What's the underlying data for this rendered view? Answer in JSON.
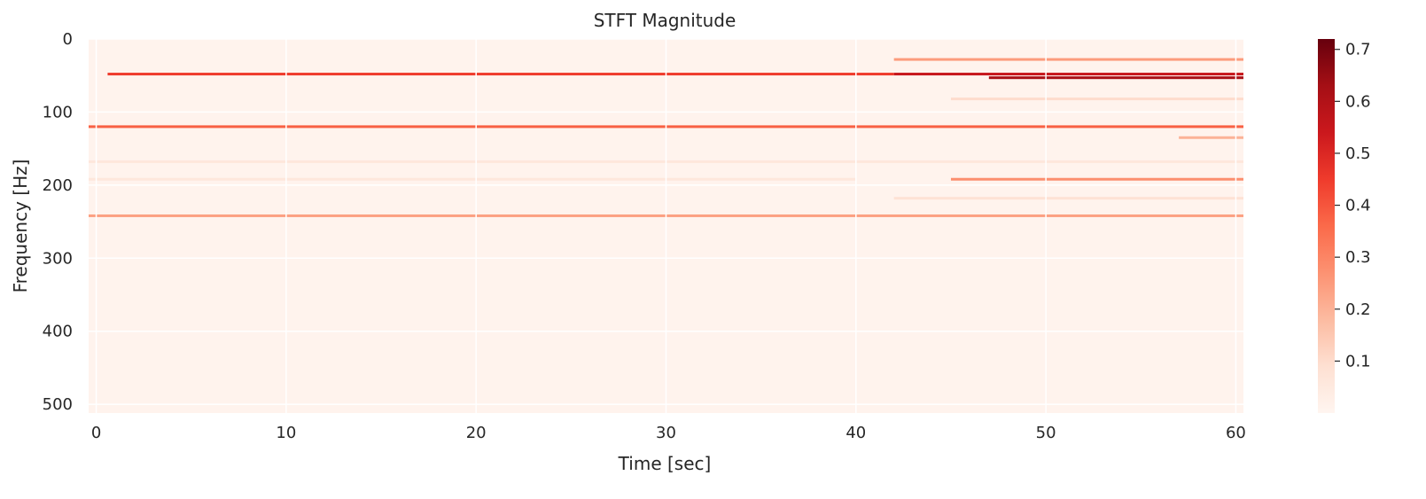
{
  "chart_data": {
    "type": "heatmap",
    "title": "STFT Magnitude",
    "xlabel": "Time [sec]",
    "ylabel": "Frequency [Hz]",
    "xlim": [
      -0.4,
      60.4
    ],
    "ylim": [
      512,
      0
    ],
    "x_ticks": [
      0,
      10,
      20,
      30,
      40,
      50,
      60
    ],
    "y_ticks": [
      0,
      100,
      200,
      300,
      400,
      500
    ],
    "grid": true,
    "colormap": "Reds",
    "colorbar": {
      "range": [
        0.0,
        0.72
      ],
      "ticks": [
        0.1,
        0.2,
        0.3,
        0.4,
        0.5,
        0.6,
        0.7
      ],
      "colors": [
        "#fff5f0",
        "#fee0d2",
        "#fcbba1",
        "#fc9272",
        "#fb6a4a",
        "#ef3b2c",
        "#cb181d",
        "#a50f15",
        "#67000d"
      ]
    },
    "background_level": 0.01,
    "bands": [
      {
        "freq": 48,
        "segments": [
          {
            "t0": 0.6,
            "t1": 42,
            "mag": 0.45
          },
          {
            "t0": 42,
            "t1": 60.4,
            "mag": 0.55
          }
        ]
      },
      {
        "freq": 53,
        "segments": [
          {
            "t0": 47,
            "t1": 60.4,
            "mag": 0.62
          }
        ]
      },
      {
        "freq": 28,
        "segments": [
          {
            "t0": 42,
            "t1": 60.4,
            "mag": 0.25
          }
        ]
      },
      {
        "freq": 120,
        "segments": [
          {
            "t0": -0.4,
            "t1": 60.4,
            "mag": 0.38
          }
        ]
      },
      {
        "freq": 135,
        "segments": [
          {
            "t0": 57,
            "t1": 60.4,
            "mag": 0.2
          }
        ]
      },
      {
        "freq": 192,
        "segments": [
          {
            "t0": -0.4,
            "t1": 40,
            "mag": 0.06
          },
          {
            "t0": 45,
            "t1": 60.4,
            "mag": 0.28
          }
        ]
      },
      {
        "freq": 242,
        "segments": [
          {
            "t0": -0.4,
            "t1": 60.4,
            "mag": 0.24
          }
        ]
      },
      {
        "freq": 82,
        "segments": [
          {
            "t0": 45,
            "t1": 60.4,
            "mag": 0.1
          }
        ]
      },
      {
        "freq": 168,
        "segments": [
          {
            "t0": -0.4,
            "t1": 60.4,
            "mag": 0.06
          }
        ]
      },
      {
        "freq": 218,
        "segments": [
          {
            "t0": 42,
            "t1": 60.4,
            "mag": 0.08
          }
        ]
      }
    ]
  }
}
